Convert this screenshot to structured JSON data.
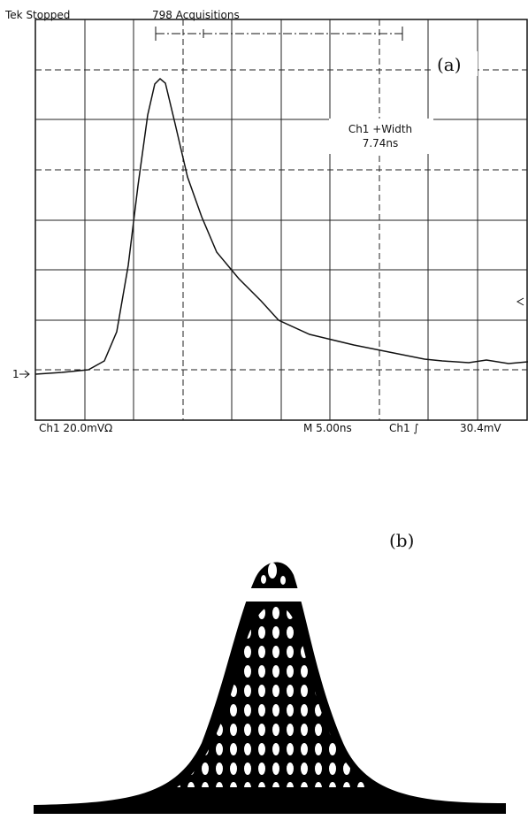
{
  "panel_a": {
    "status": "Tek Stopped",
    "acquisitions": "798 Acquisitions",
    "label": "(a)",
    "measurement": {
      "name": "Ch1 +Width",
      "value": "7.74ns"
    },
    "channel_marker": "1",
    "footer": {
      "channel": "Ch1  20.0mVΩ",
      "timebase": "M 5.00ns",
      "trigger": "Ch1 ∫",
      "trigger_level": "30.4mV"
    }
  },
  "panel_b": {
    "label": "(b)"
  }
}
